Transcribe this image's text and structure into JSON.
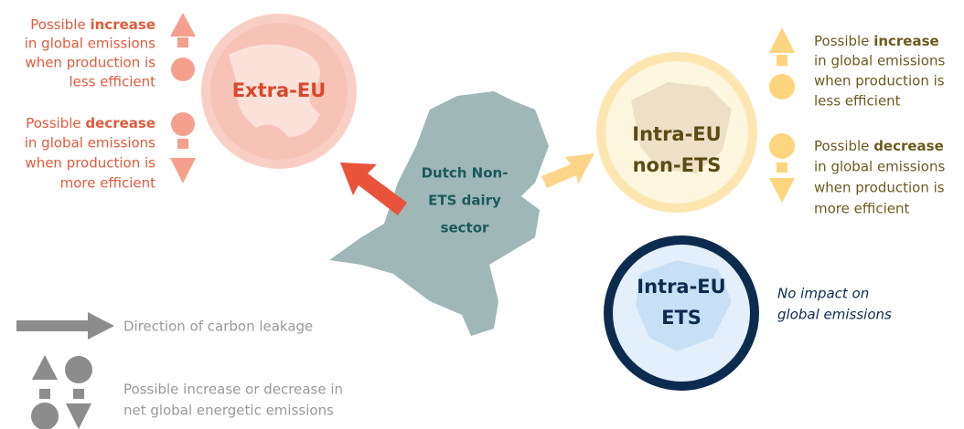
{
  "extra_eu": {
    "label_lines": [
      "Extra-EU"
    ],
    "increase": {
      "lead": "Possible",
      "bold": "increase",
      "lines": [
        "in global emissions",
        "when production is",
        "less efficient"
      ]
    },
    "decrease": {
      "lead": "Possible",
      "bold": "decrease",
      "lines": [
        "in global emissions",
        "when production is",
        "more efficient"
      ]
    }
  },
  "intra_eu_non_ets": {
    "label_lines": [
      "Intra-EU",
      "non-ETS"
    ],
    "increase": {
      "lead": "Possible",
      "bold": "increase",
      "lines": [
        "in global emissions",
        "when production is",
        "less efficient"
      ]
    },
    "decrease": {
      "lead": "Possible",
      "bold": "decrease",
      "lines": [
        "in global emissions",
        "when production is",
        "more efficient"
      ]
    }
  },
  "intra_eu_ets": {
    "label_lines": [
      "Intra-EU",
      "ETS"
    ],
    "note_lines": [
      "No impact on",
      "global emissions"
    ]
  },
  "center": {
    "label_lines": [
      "Dutch Non-",
      "ETS dairy",
      "sector"
    ]
  },
  "legend": {
    "arrow": "Direction of carbon leakage",
    "symbols_lines": [
      "Possible increase or decrease in",
      "net global energetic emissions"
    ]
  }
}
